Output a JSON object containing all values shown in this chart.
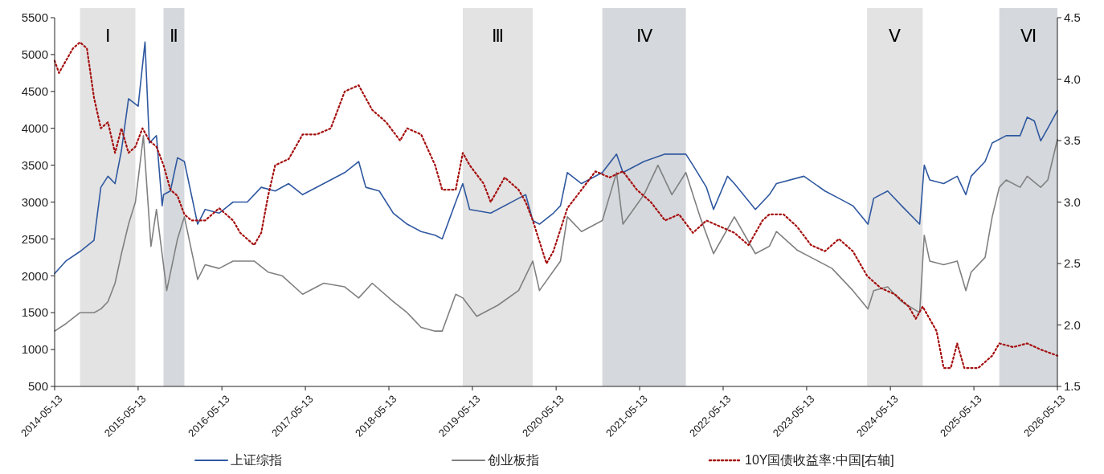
{
  "chart_data": {
    "type": "line",
    "xlim": [
      "2014-05-13",
      "2026-05-13"
    ],
    "xticks": [
      "2014-05-13",
      "2015-05-13",
      "2016-05-13",
      "2017-05-13",
      "2018-05-13",
      "2019-05-13",
      "2020-05-13",
      "2021-05-13",
      "2022-05-13",
      "2023-05-13",
      "2024-05-13",
      "2025-05-13",
      "2026-05-13"
    ],
    "ylim": [
      500,
      5500
    ],
    "yticks": [
      500,
      1000,
      1500,
      2000,
      2500,
      3000,
      3500,
      4000,
      4500,
      5000,
      5500
    ],
    "y2lim": [
      1.5,
      4.5
    ],
    "y2ticks": [
      {
        "value": 1.5,
        "label": "1.5"
      },
      {
        "value": 2,
        "label": "2.0"
      },
      {
        "value": 2.5,
        "label": "2.5"
      },
      {
        "value": 3,
        "label": "3.0"
      },
      {
        "value": 3.5,
        "label": "3.5"
      },
      {
        "value": 4,
        "label": "4.0"
      },
      {
        "value": 4.5,
        "label": "4.5"
      }
    ],
    "legend": "bottom",
    "grid": false,
    "bands": [
      {
        "axis": "x",
        "from": "2014-09",
        "to": "2015-05",
        "label": "Ⅰ",
        "color": "#e3e3e3"
      },
      {
        "axis": "x",
        "from": "2015-09",
        "to": "2015-12",
        "label": "Ⅱ",
        "color": "#d5d8dc"
      },
      {
        "axis": "x",
        "from": "2019-04",
        "to": "2020-02",
        "label": "Ⅲ",
        "color": "#e3e3e3"
      },
      {
        "axis": "x",
        "from": "2020-12",
        "to": "2021-12",
        "label": "Ⅳ",
        "color": "#d5d8dc"
      },
      {
        "axis": "x",
        "from": "2024-02",
        "to": "2024-10",
        "label": "Ⅴ",
        "color": "#e3e3e3"
      },
      {
        "axis": "x",
        "from": "2025-09",
        "to": "2026-05-13",
        "label": "Ⅵ",
        "color": "#d5d8dc"
      }
    ],
    "series": [
      {
        "name": "上证综指",
        "color": "#2f58a0",
        "line_style": "solid",
        "x": [
          "2014-05-13",
          "2014-07",
          "2014-09",
          "2014-11",
          "2014-12",
          "2015-01",
          "2015-02",
          "2015-03",
          "2015-04",
          "2015-05-13",
          "2015-06-12",
          "2015-07",
          "2015-08",
          "2015-08-26",
          "2015-09",
          "2015-10",
          "2015-11",
          "2015-12",
          "2016-01-28",
          "2016-03",
          "2016-05",
          "2016-07",
          "2016-09",
          "2016-11",
          "2017-01",
          "2017-03",
          "2017-05",
          "2017-08",
          "2017-11",
          "2018-01",
          "2018-02",
          "2018-04",
          "2018-06",
          "2018-08",
          "2018-10",
          "2018-12",
          "2019-01",
          "2019-03",
          "2019-04",
          "2019-05",
          "2019-08",
          "2019-12",
          "2020-01",
          "2020-02",
          "2020-03",
          "2020-05",
          "2020-06",
          "2020-07",
          "2020-09",
          "2020-12",
          "2021-02",
          "2021-03",
          "2021-06",
          "2021-09",
          "2021-12",
          "2022-01",
          "2022-03",
          "2022-04",
          "2022-06",
          "2022-07",
          "2022-10",
          "2022-12",
          "2023-01",
          "2023-05",
          "2023-08",
          "2023-10",
          "2023-12",
          "2024-02-05",
          "2024-03",
          "2024-05",
          "2024-07",
          "2024-09-18",
          "2024-10-08",
          "2024-11",
          "2025-01",
          "2025-03",
          "2025-04-08",
          "2025-05",
          "2025-07",
          "2025-08",
          "2025-10",
          "2025-12",
          "2026-01",
          "2026-02",
          "2026-03",
          "2026-04",
          "2026-05-13"
        ],
        "values": [
          2030,
          2200,
          2330,
          2480,
          3200,
          3350,
          3250,
          3700,
          4400,
          4300,
          5170,
          3800,
          3900,
          2950,
          3100,
          3150,
          3600,
          3550,
          2700,
          2900,
          2850,
          3000,
          3000,
          3200,
          3150,
          3250,
          3100,
          3250,
          3400,
          3550,
          3200,
          3150,
          2850,
          2700,
          2600,
          2550,
          2500,
          3000,
          3250,
          2900,
          2850,
          3050,
          3100,
          2750,
          2700,
          2850,
          2950,
          3400,
          3250,
          3400,
          3650,
          3400,
          3550,
          3650,
          3650,
          3500,
          3200,
          2900,
          3350,
          3250,
          2900,
          3100,
          3250,
          3350,
          3150,
          3050,
          2950,
          2700,
          3050,
          3150,
          2950,
          2700,
          3500,
          3300,
          3250,
          3350,
          3100,
          3350,
          3550,
          3800,
          3900,
          3900,
          4150,
          4100,
          3830,
          4000,
          4240
        ]
      },
      {
        "name": "创业板指",
        "color": "#808080",
        "line_style": "solid",
        "x": [
          "2014-05-13",
          "2014-07",
          "2014-09",
          "2014-11",
          "2014-12",
          "2015-01",
          "2015-02",
          "2015-03",
          "2015-04",
          "2015-05",
          "2015-06-05",
          "2015-07-08",
          "2015-08",
          "2015-09-15",
          "2015-11",
          "2015-12",
          "2016-01-28",
          "2016-03",
          "2016-05",
          "2016-07",
          "2016-10",
          "2016-12",
          "2017-02",
          "2017-05",
          "2017-08",
          "2017-11",
          "2018-01",
          "2018-03",
          "2018-06",
          "2018-08",
          "2018-10",
          "2018-12",
          "2019-01",
          "2019-03",
          "2019-04",
          "2019-06",
          "2019-09",
          "2019-12",
          "2020-02",
          "2020-03",
          "2020-06",
          "2020-07",
          "2020-09",
          "2020-12",
          "2021-02",
          "2021-03",
          "2021-06",
          "2021-08",
          "2021-10",
          "2021-12",
          "2022-02",
          "2022-04",
          "2022-07",
          "2022-10",
          "2022-12",
          "2023-01",
          "2023-04",
          "2023-06",
          "2023-09",
          "2023-12",
          "2024-02-05",
          "2024-03",
          "2024-05",
          "2024-07",
          "2024-09-18",
          "2024-10-08",
          "2024-11",
          "2025-01",
          "2025-03",
          "2025-04-08",
          "2025-05",
          "2025-07",
          "2025-08",
          "2025-09",
          "2025-10",
          "2025-12",
          "2026-01",
          "2026-03",
          "2026-04",
          "2026-05-13"
        ],
        "values": [
          1250,
          1350,
          1500,
          1500,
          1550,
          1650,
          1900,
          2300,
          2700,
          3000,
          3900,
          2400,
          2900,
          1800,
          2500,
          2800,
          1950,
          2150,
          2100,
          2200,
          2200,
          2050,
          2000,
          1750,
          1900,
          1850,
          1700,
          1900,
          1650,
          1500,
          1300,
          1250,
          1250,
          1750,
          1700,
          1450,
          1600,
          1800,
          2200,
          1800,
          2200,
          2800,
          2600,
          2750,
          3400,
          2700,
          3100,
          3500,
          3100,
          3400,
          2800,
          2300,
          2800,
          2300,
          2400,
          2600,
          2350,
          2250,
          2100,
          1800,
          1550,
          1800,
          1850,
          1650,
          1500,
          2550,
          2200,
          2150,
          2200,
          1800,
          2050,
          2250,
          2800,
          3200,
          3300,
          3200,
          3350,
          3200,
          3300,
          3850
        ]
      },
      {
        "name": "10Y国债收益率:中国[右轴]",
        "color": "#a50f0f",
        "line_style": "dotted",
        "axis": "y2",
        "x": [
          "2014-05-13",
          "2014-06",
          "2014-08",
          "2014-09",
          "2014-10",
          "2014-11",
          "2014-12",
          "2015-01",
          "2015-02",
          "2015-03",
          "2015-04",
          "2015-05",
          "2015-06",
          "2015-07",
          "2015-08",
          "2015-09",
          "2015-10",
          "2015-11",
          "2015-12",
          "2016-01",
          "2016-03",
          "2016-05",
          "2016-07",
          "2016-08",
          "2016-10",
          "2016-11",
          "2016-12",
          "2017-01",
          "2017-03",
          "2017-05",
          "2017-07",
          "2017-09",
          "2017-11",
          "2018-01",
          "2018-03",
          "2018-05",
          "2018-07",
          "2018-08",
          "2018-10",
          "2018-12",
          "2019-01",
          "2019-03",
          "2019-04",
          "2019-05",
          "2019-07",
          "2019-08",
          "2019-10",
          "2019-12",
          "2020-01",
          "2020-02",
          "2020-04",
          "2020-05",
          "2020-07",
          "2020-09",
          "2020-11",
          "2021-01",
          "2021-03",
          "2021-05",
          "2021-07",
          "2021-09",
          "2021-11",
          "2022-01",
          "2022-03",
          "2022-05",
          "2022-07",
          "2022-09",
          "2022-11",
          "2022-12",
          "2023-02",
          "2023-04",
          "2023-06",
          "2023-08",
          "2023-10",
          "2023-12",
          "2024-02",
          "2024-04",
          "2024-06",
          "2024-08",
          "2024-09",
          "2024-10",
          "2024-12",
          "2025-01",
          "2025-02",
          "2025-03",
          "2025-04",
          "2025-06",
          "2025-08",
          "2025-09",
          "2025-11",
          "2026-01",
          "2026-03",
          "2026-05-13"
        ],
        "values": [
          4.15,
          4.05,
          4.25,
          4.3,
          4.25,
          3.85,
          3.6,
          3.65,
          3.4,
          3.6,
          3.4,
          3.45,
          3.6,
          3.5,
          3.45,
          3.3,
          3.1,
          3.05,
          2.9,
          2.85,
          2.85,
          2.95,
          2.85,
          2.75,
          2.65,
          2.75,
          3.05,
          3.3,
          3.35,
          3.55,
          3.55,
          3.6,
          3.9,
          3.95,
          3.75,
          3.65,
          3.5,
          3.6,
          3.55,
          3.3,
          3.1,
          3.1,
          3.4,
          3.3,
          3.15,
          3.0,
          3.2,
          3.1,
          3.0,
          2.85,
          2.5,
          2.6,
          2.95,
          3.1,
          3.25,
          3.2,
          3.25,
          3.1,
          3.0,
          2.85,
          2.9,
          2.75,
          2.85,
          2.8,
          2.75,
          2.65,
          2.85,
          2.9,
          2.9,
          2.8,
          2.65,
          2.6,
          2.7,
          2.6,
          2.4,
          2.3,
          2.25,
          2.15,
          2.05,
          2.15,
          1.95,
          1.65,
          1.65,
          1.85,
          1.65,
          1.65,
          1.75,
          1.85,
          1.82,
          1.85,
          1.8,
          1.75
        ]
      }
    ]
  }
}
